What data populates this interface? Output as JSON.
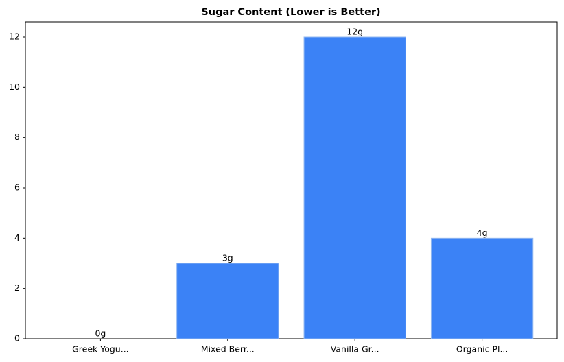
{
  "chart_data": {
    "type": "bar",
    "title": "Sugar Content (Lower is Better)",
    "categories": [
      "Greek Yogu...",
      "Mixed Berr...",
      "Vanilla Gr...",
      "Organic Pl..."
    ],
    "values": [
      0,
      3,
      12,
      4
    ],
    "value_labels": [
      "0g",
      "3g",
      "12g",
      "4g"
    ],
    "color": "#3b82f6",
    "ylim": [
      0,
      12.6
    ],
    "yticks": [
      0,
      2,
      4,
      6,
      8,
      10,
      12
    ],
    "grid": false
  }
}
